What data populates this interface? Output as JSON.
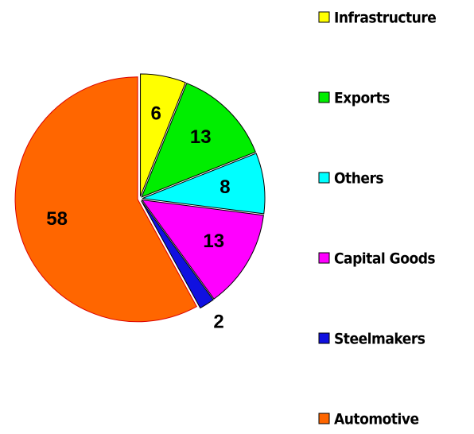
{
  "chart_data": {
    "type": "pie",
    "categories": [
      "Infrastructure",
      "Exports",
      "Others",
      "Capital Goods",
      "Steelmakers",
      "Automotive"
    ],
    "values": [
      6,
      13,
      8,
      13,
      2,
      58
    ],
    "colors": [
      "#ffff00",
      "#00ee00",
      "#00ffff",
      "#ff00ff",
      "#1010e0",
      "#ff6600"
    ],
    "legend": "right"
  }
}
